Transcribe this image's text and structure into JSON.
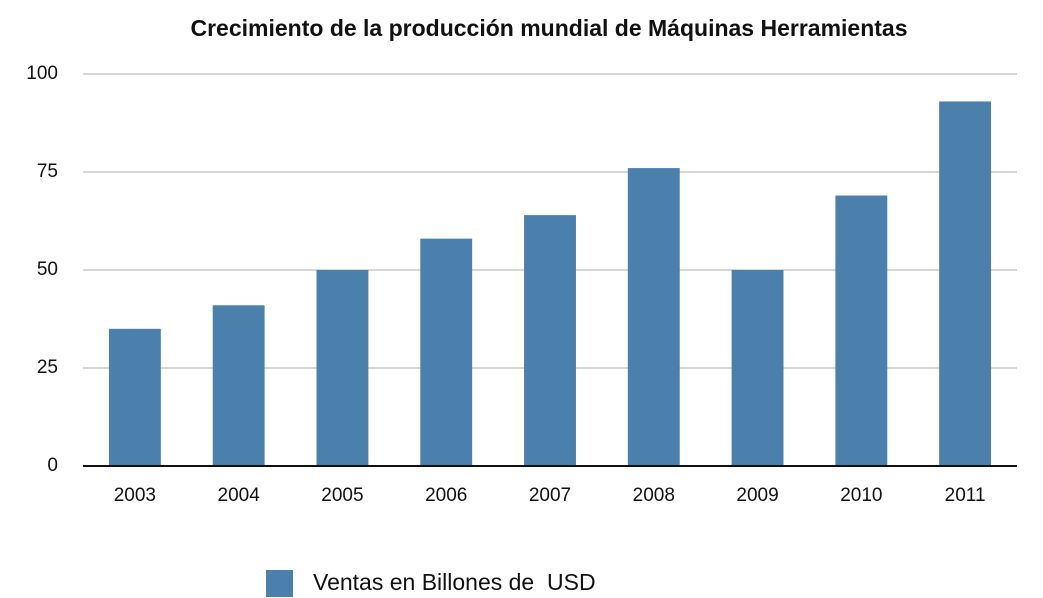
{
  "chart_data": {
    "type": "bar",
    "title": "Crecimiento de la producción mundial de Máquinas Herramientas",
    "categories": [
      "2003",
      "2004",
      "2005",
      "2006",
      "2007",
      "2008",
      "2009",
      "2010",
      "2011"
    ],
    "series": [
      {
        "name": "Ventas en Billones de  USD",
        "color": "#4a80ab",
        "values": [
          35,
          41,
          50,
          58,
          64,
          76,
          50,
          69,
          93
        ]
      }
    ],
    "ylim": [
      0,
      100
    ],
    "yticks": [
      0,
      25,
      50,
      75,
      100
    ],
    "grid": true,
    "legend": "bottom"
  }
}
